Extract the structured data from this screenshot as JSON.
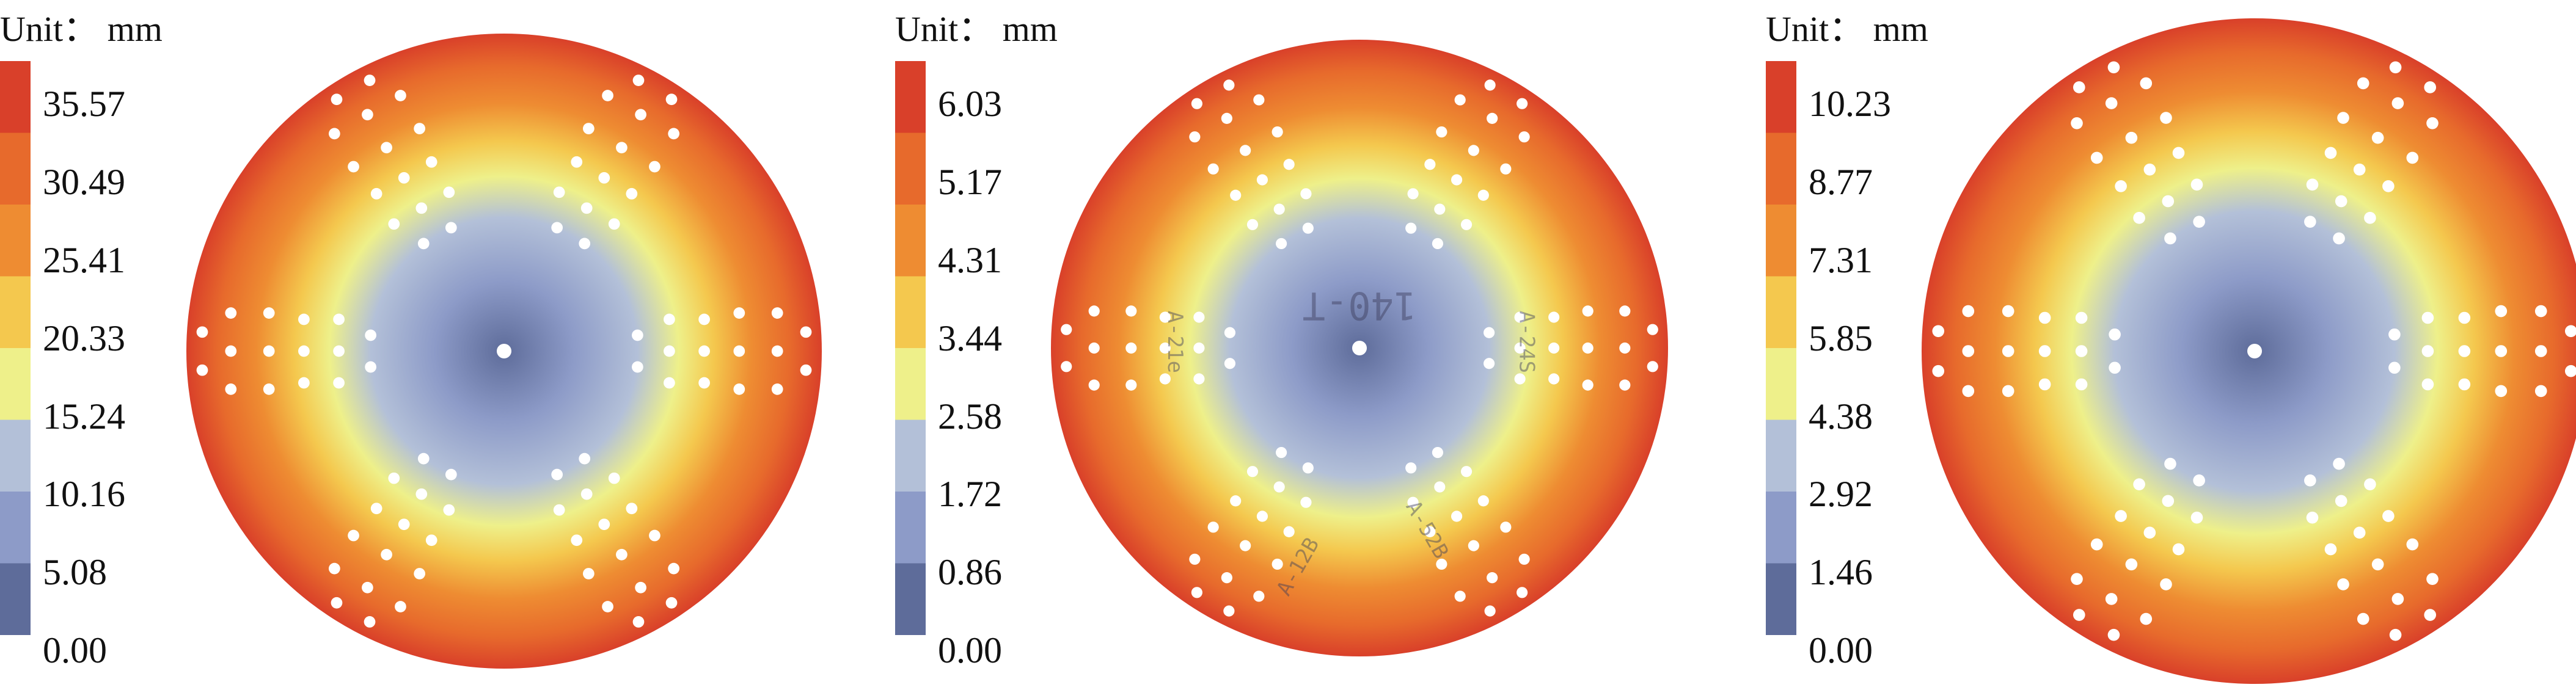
{
  "chart_data": [
    {
      "type": "heatmap",
      "unit_label": "Unit： mm",
      "colorbar_ticks": [
        "35.57",
        "30.49",
        "25.41",
        "20.33",
        "15.24",
        "10.16",
        "5.08",
        "0.00"
      ],
      "range": [
        0.0,
        35.57
      ],
      "colorscale": [
        "#5e6c9a",
        "#8d9bc8",
        "#b3c0d8",
        "#eef08a",
        "#f4c84e",
        "#ee8c32",
        "#e76a2c",
        "#d9402a"
      ],
      "hole_pattern": "hexagonal"
    },
    {
      "type": "heatmap",
      "unit_label": "Unit： mm",
      "colorbar_ticks": [
        "6.03",
        "5.17",
        "4.31",
        "3.44",
        "2.58",
        "1.72",
        "0.86",
        "0.00"
      ],
      "range": [
        0.0,
        6.03
      ],
      "colorscale": [
        "#5e6c9a",
        "#8d9bc8",
        "#b3c0d8",
        "#eef08a",
        "#f4c84e",
        "#ee8c32",
        "#e76a2c",
        "#d9402a"
      ],
      "hole_pattern": "hexagonal",
      "surface_marks": [
        "140-T",
        "A-21e",
        "A-24S",
        "A-12B",
        "A-52B"
      ]
    },
    {
      "type": "heatmap",
      "unit_label": "Unit： mm",
      "colorbar_ticks": [
        "10.23",
        "8.77",
        "7.31",
        "5.85",
        "4.38",
        "2.92",
        "1.46",
        "0.00"
      ],
      "range": [
        0.0,
        10.23
      ],
      "colorscale": [
        "#5e6c9a",
        "#8d9bc8",
        "#b3c0d8",
        "#eef08a",
        "#f4c84e",
        "#ee8c32",
        "#e76a2c",
        "#d9402a"
      ],
      "hole_pattern": "hexagonal"
    }
  ]
}
